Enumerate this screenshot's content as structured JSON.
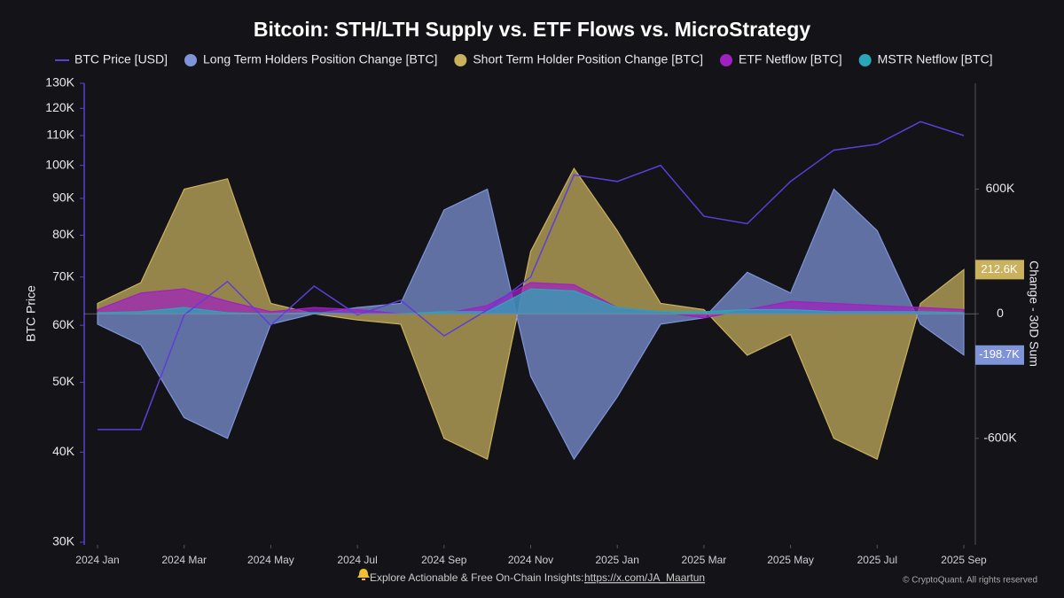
{
  "chart_data": {
    "type": "area",
    "title": "Bitcoin: STH/LTH Supply vs. ETF Flows vs. MicroStrategy",
    "ylabel": "BTC Price",
    "y2label": "Change - 30D Sum",
    "x": [
      "2024-01",
      "2024-02",
      "2024-03",
      "2024-04",
      "2024-05",
      "2024-06",
      "2024-07",
      "2024-08",
      "2024-09",
      "2024-10",
      "2024-11",
      "2024-12",
      "2025-01",
      "2025-02",
      "2025-03",
      "2025-04",
      "2025-05",
      "2025-06",
      "2025-07",
      "2025-08",
      "2025-09"
    ],
    "xlim": [
      "2024-01",
      "2025-09"
    ],
    "xticks": [
      {
        "value": "2024-01",
        "label": "2024 Jan"
      },
      {
        "value": "2024-03",
        "label": "2024 Mar"
      },
      {
        "value": "2024-05",
        "label": "2024 May"
      },
      {
        "value": "2024-07",
        "label": "2024 Jul"
      },
      {
        "value": "2024-09",
        "label": "2024 Sep"
      },
      {
        "value": "2024-11",
        "label": "2024 Nov"
      },
      {
        "value": "2025-01",
        "label": "2025 Jan"
      },
      {
        "value": "2025-03",
        "label": "2025 Mar"
      },
      {
        "value": "2025-05",
        "label": "2025 May"
      },
      {
        "value": "2025-07",
        "label": "2025 Jul"
      },
      {
        "value": "2025-09",
        "label": "2025 Sep"
      }
    ],
    "ylim": [
      30000,
      130000
    ],
    "log_scale": true,
    "yticks": [
      {
        "value": 30000,
        "label": "30K"
      },
      {
        "value": 40000,
        "label": "40K"
      },
      {
        "value": 50000,
        "label": "50K"
      },
      {
        "value": 60000,
        "label": "60K"
      },
      {
        "value": 70000,
        "label": "70K"
      },
      {
        "value": 80000,
        "label": "80K"
      },
      {
        "value": 90000,
        "label": "90K"
      },
      {
        "value": 100000,
        "label": "100K"
      },
      {
        "value": 110000,
        "label": "110K"
      },
      {
        "value": 120000,
        "label": "120K"
      },
      {
        "value": 130000,
        "label": "130K"
      }
    ],
    "y2lim": [
      -1100000,
      1110000
    ],
    "y2ticks": [
      {
        "value": -600000,
        "label": "-600K"
      },
      0,
      {
        "value": 600000,
        "label": "600K"
      }
    ],
    "series": [
      {
        "name": "BTC Price [USD]",
        "color": "#5b3fd6",
        "kind": "line",
        "values": [
          43000,
          43000,
          62000,
          69000,
          60000,
          68000,
          62000,
          65000,
          58000,
          63000,
          70000,
          97000,
          95000,
          100000,
          85000,
          83000,
          95000,
          105000,
          107000,
          115000,
          110000
        ]
      },
      {
        "name": "Long Term Holders Position Change [BTC]",
        "color": "#7f94d8",
        "kind": "area",
        "axis": "y2",
        "values": [
          -50000,
          -150000,
          -500000,
          -600000,
          -50000,
          0,
          30000,
          50000,
          500000,
          600000,
          -300000,
          -700000,
          -400000,
          -50000,
          -20000,
          200000,
          100000,
          600000,
          400000,
          -50000,
          -198700
        ],
        "value_labels": [
          null,
          null,
          null,
          null,
          null,
          null,
          null,
          null,
          null,
          null,
          null,
          null,
          null,
          null,
          null,
          null,
          null,
          null,
          null,
          null,
          "-198.7K"
        ]
      },
      {
        "name": "Short Term Holder Position Change [BTC]",
        "color": "#c9b15e",
        "kind": "area",
        "axis": "y2",
        "values": [
          50000,
          150000,
          600000,
          650000,
          50000,
          0,
          -30000,
          -50000,
          -600000,
          -700000,
          300000,
          700000,
          400000,
          50000,
          20000,
          -200000,
          -100000,
          -600000,
          -700000,
          50000,
          212600
        ],
        "value_labels": [
          null,
          null,
          null,
          null,
          null,
          null,
          null,
          null,
          null,
          null,
          null,
          null,
          null,
          null,
          null,
          null,
          null,
          null,
          null,
          null,
          "212.6K"
        ]
      },
      {
        "name": "ETF Netflow [BTC]",
        "color": "#a020c0",
        "kind": "area",
        "axis": "y2",
        "values": [
          20000,
          100000,
          120000,
          60000,
          10000,
          30000,
          20000,
          0,
          0,
          40000,
          150000,
          140000,
          30000,
          10000,
          -20000,
          20000,
          60000,
          50000,
          40000,
          30000,
          20000
        ]
      },
      {
        "name": "MSTR Netflow [BTC]",
        "color": "#2aa7b8",
        "kind": "area",
        "axis": "y2",
        "values": [
          5000,
          10000,
          30000,
          5000,
          0,
          5000,
          0,
          0,
          10000,
          10000,
          120000,
          110000,
          30000,
          10000,
          10000,
          20000,
          20000,
          10000,
          10000,
          10000,
          5000
        ]
      }
    ]
  },
  "footer": {
    "text": "Explore Actionable & Free On-Chain Insights:",
    "link": "https://x.com/JA_Maartun",
    "copyright": "© CryptoQuant. All rights reserved"
  }
}
